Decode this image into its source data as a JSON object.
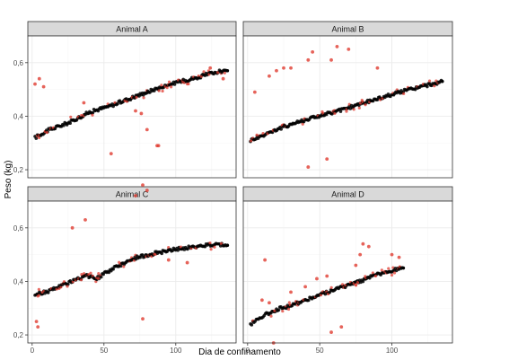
{
  "chart_data": {
    "type": "scatter",
    "facet_layout": "2x2",
    "xlabel": "Dia de confinamento",
    "ylabel": "Peso (kg)",
    "x_ticks": [
      0,
      50,
      100
    ],
    "y_ticks": [
      0.2,
      0.4,
      0.6
    ],
    "y_tick_labels": [
      "0,2",
      "0,4",
      "0,6"
    ],
    "xlim": [
      -3,
      142
    ],
    "ylim": [
      0.17,
      0.7
    ],
    "grid": true,
    "colors": {
      "fitted": "#000000",
      "observed_outlier": "#e03c31",
      "strip_bg": "#d9d9d9",
      "grid_major": "#ebebeb",
      "grid_minor": "#f5f5f5",
      "border": "#333333"
    },
    "panels": [
      {
        "title": "Animal A",
        "trend_start": [
          2,
          0.32
        ],
        "trend_end": [
          136,
          0.57
        ],
        "trend_points": [
          [
            2,
            0.32
          ],
          [
            10,
            0.345
          ],
          [
            25,
            0.375
          ],
          [
            40,
            0.415
          ],
          [
            55,
            0.44
          ],
          [
            70,
            0.47
          ],
          [
            85,
            0.5
          ],
          [
            100,
            0.525
          ],
          [
            115,
            0.545
          ],
          [
            128,
            0.565
          ],
          [
            136,
            0.57
          ]
        ],
        "red_scatter": [
          [
            2,
            0.52
          ],
          [
            5,
            0.54
          ],
          [
            8,
            0.51
          ],
          [
            36,
            0.45
          ],
          [
            55,
            0.26
          ],
          [
            72,
            0.42
          ],
          [
            76,
            0.41
          ],
          [
            80,
            0.35
          ],
          [
            87,
            0.29
          ],
          [
            88,
            0.29
          ],
          [
            124,
            0.58
          ],
          [
            133,
            0.54
          ]
        ]
      },
      {
        "title": "Animal B",
        "trend_start": [
          2,
          0.31
        ],
        "trend_end": [
          135,
          0.53
        ],
        "trend_points": [
          [
            2,
            0.31
          ],
          [
            15,
            0.34
          ],
          [
            30,
            0.37
          ],
          [
            45,
            0.395
          ],
          [
            60,
            0.415
          ],
          [
            75,
            0.44
          ],
          [
            90,
            0.465
          ],
          [
            105,
            0.49
          ],
          [
            120,
            0.51
          ],
          [
            135,
            0.53
          ]
        ],
        "red_scatter": [
          [
            5,
            0.49
          ],
          [
            15,
            0.55
          ],
          [
            20,
            0.57
          ],
          [
            25,
            0.58
          ],
          [
            30,
            0.58
          ],
          [
            42,
            0.61
          ],
          [
            45,
            0.64
          ],
          [
            55,
            0.24
          ],
          [
            42,
            0.21
          ],
          [
            58,
            0.61
          ],
          [
            62,
            0.66
          ],
          [
            70,
            0.65
          ],
          [
            90,
            0.58
          ]
        ]
      },
      {
        "title": "Animal C",
        "trend_start": [
          2,
          0.35
        ],
        "trend_end": [
          136,
          0.54
        ],
        "trend_points": [
          [
            2,
            0.35
          ],
          [
            12,
            0.365
          ],
          [
            25,
            0.395
          ],
          [
            38,
            0.42
          ],
          [
            45,
            0.41
          ],
          [
            55,
            0.445
          ],
          [
            70,
            0.485
          ],
          [
            85,
            0.505
          ],
          [
            100,
            0.52
          ],
          [
            115,
            0.53
          ],
          [
            128,
            0.54
          ],
          [
            136,
            0.535
          ]
        ],
        "red_scatter": [
          [
            3,
            0.25
          ],
          [
            4,
            0.23
          ],
          [
            28,
            0.6
          ],
          [
            37,
            0.63
          ],
          [
            72,
            0.72
          ],
          [
            77,
            0.76
          ],
          [
            80,
            0.74
          ],
          [
            77,
            0.26
          ],
          [
            95,
            0.48
          ],
          [
            108,
            0.47
          ]
        ]
      },
      {
        "title": "Animal D",
        "trend_start": [
          2,
          0.24
        ],
        "trend_end": [
          108,
          0.45
        ],
        "trend_points": [
          [
            2,
            0.24
          ],
          [
            10,
            0.27
          ],
          [
            20,
            0.295
          ],
          [
            30,
            0.31
          ],
          [
            40,
            0.33
          ],
          [
            50,
            0.35
          ],
          [
            60,
            0.37
          ],
          [
            70,
            0.385
          ],
          [
            80,
            0.405
          ],
          [
            90,
            0.425
          ],
          [
            100,
            0.44
          ],
          [
            108,
            0.45
          ]
        ],
        "red_scatter": [
          [
            10,
            0.33
          ],
          [
            12,
            0.48
          ],
          [
            15,
            0.32
          ],
          [
            18,
            0.17
          ],
          [
            30,
            0.36
          ],
          [
            40,
            0.38
          ],
          [
            48,
            0.41
          ],
          [
            55,
            0.42
          ],
          [
            58,
            0.21
          ],
          [
            65,
            0.23
          ],
          [
            75,
            0.46
          ],
          [
            78,
            0.5
          ],
          [
            80,
            0.54
          ],
          [
            84,
            0.53
          ],
          [
            100,
            0.5
          ],
          [
            105,
            0.49
          ]
        ]
      }
    ]
  }
}
